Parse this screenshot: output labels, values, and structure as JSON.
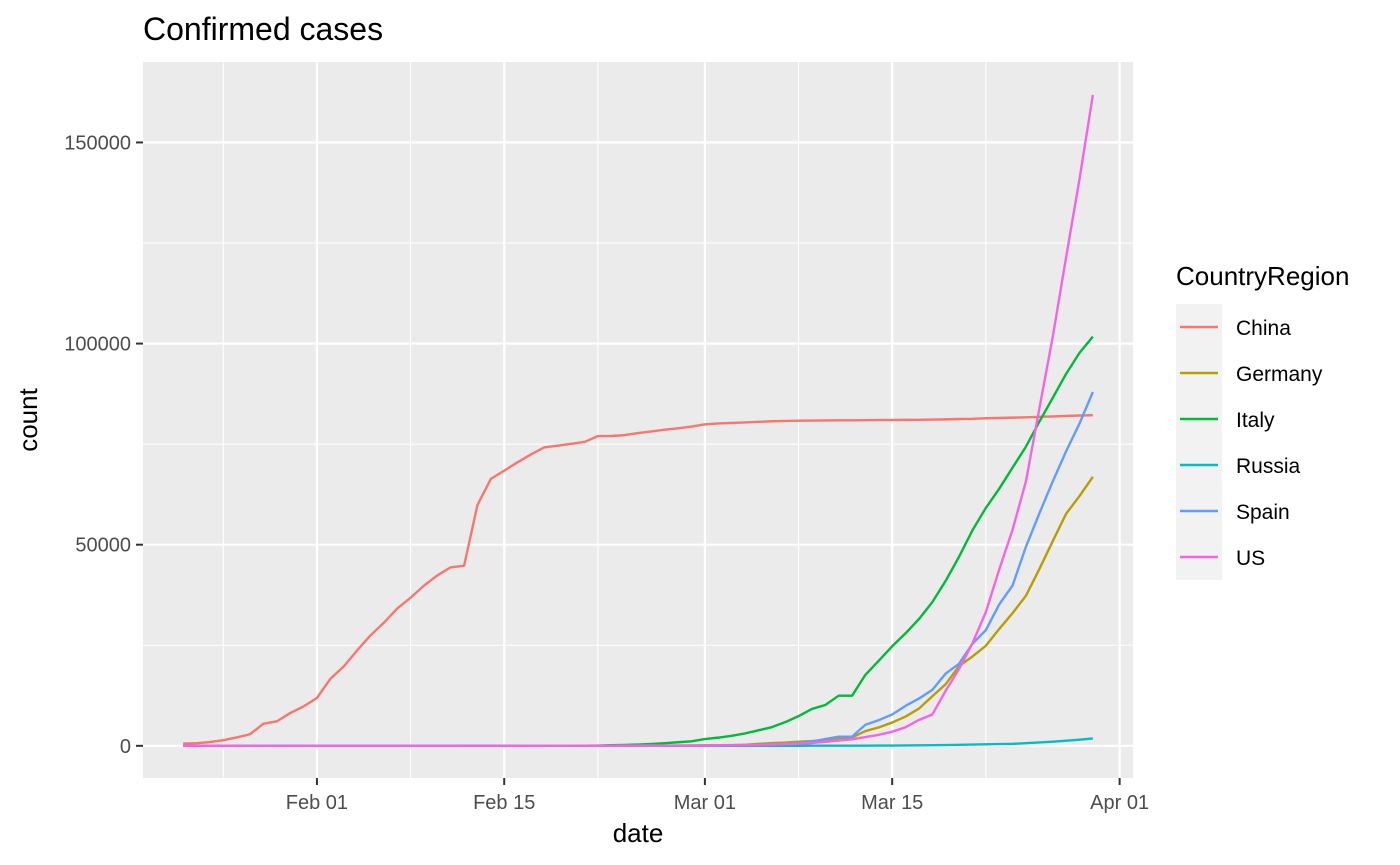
{
  "chart_data": {
    "type": "line",
    "title": "Confirmed cases",
    "xlabel": "date",
    "ylabel": "count",
    "x_axis_type": "date",
    "xlim": [
      "2020-01-19",
      "2020-04-02"
    ],
    "ylim": [
      -8000,
      170000
    ],
    "x_ticks": [
      {
        "date": "2020-02-01",
        "label": "Feb 01"
      },
      {
        "date": "2020-02-15",
        "label": "Feb 15"
      },
      {
        "date": "2020-03-01",
        "label": "Mar 01"
      },
      {
        "date": "2020-03-15",
        "label": "Mar 15"
      },
      {
        "date": "2020-04-01",
        "label": "Apr 01"
      }
    ],
    "x_minor_ticks": [
      "2020-01-25",
      "2020-02-08",
      "2020-02-22",
      "2020-03-08",
      "2020-03-22"
    ],
    "y_ticks": [
      0,
      50000,
      100000,
      150000
    ],
    "y_tick_labels": [
      "0",
      "50000",
      "100000",
      "150000"
    ],
    "y_minor_ticks": [
      25000,
      75000,
      125000
    ],
    "grid": true,
    "panel_background": "#ebebeb",
    "grid_color": "#ffffff",
    "legend": {
      "title": "CountryRegion",
      "position": "right"
    },
    "series": [
      {
        "name": "China",
        "color": "#F8766D",
        "points": [
          [
            "2020-01-22",
            548
          ],
          [
            "2020-01-23",
            643
          ],
          [
            "2020-01-24",
            920
          ],
          [
            "2020-01-25",
            1406
          ],
          [
            "2020-01-26",
            2075
          ],
          [
            "2020-01-27",
            2877
          ],
          [
            "2020-01-28",
            5509
          ],
          [
            "2020-01-29",
            6087
          ],
          [
            "2020-01-30",
            8141
          ],
          [
            "2020-01-31",
            9802
          ],
          [
            "2020-02-01",
            11891
          ],
          [
            "2020-02-02",
            16630
          ],
          [
            "2020-02-03",
            19716
          ],
          [
            "2020-02-04",
            23707
          ],
          [
            "2020-02-05",
            27440
          ],
          [
            "2020-02-06",
            30587
          ],
          [
            "2020-02-07",
            34110
          ],
          [
            "2020-02-08",
            36814
          ],
          [
            "2020-02-09",
            39829
          ],
          [
            "2020-02-10",
            42354
          ],
          [
            "2020-02-11",
            44386
          ],
          [
            "2020-02-12",
            44759
          ],
          [
            "2020-02-13",
            59895
          ],
          [
            "2020-02-14",
            66358
          ],
          [
            "2020-02-15",
            68413
          ],
          [
            "2020-02-16",
            70513
          ],
          [
            "2020-02-17",
            72434
          ],
          [
            "2020-02-18",
            74211
          ],
          [
            "2020-02-19",
            74619
          ],
          [
            "2020-02-20",
            75077
          ],
          [
            "2020-02-21",
            75550
          ],
          [
            "2020-02-22",
            77001
          ],
          [
            "2020-02-23",
            77022
          ],
          [
            "2020-02-24",
            77241
          ],
          [
            "2020-02-25",
            77754
          ],
          [
            "2020-02-26",
            78166
          ],
          [
            "2020-02-27",
            78600
          ],
          [
            "2020-02-28",
            78928
          ],
          [
            "2020-02-29",
            79356
          ],
          [
            "2020-03-01",
            79932
          ],
          [
            "2020-03-02",
            80136
          ],
          [
            "2020-03-03",
            80261
          ],
          [
            "2020-03-04",
            80386
          ],
          [
            "2020-03-05",
            80537
          ],
          [
            "2020-03-06",
            80690
          ],
          [
            "2020-03-07",
            80770
          ],
          [
            "2020-03-08",
            80823
          ],
          [
            "2020-03-09",
            80860
          ],
          [
            "2020-03-10",
            80887
          ],
          [
            "2020-03-11",
            80921
          ],
          [
            "2020-03-12",
            80932
          ],
          [
            "2020-03-13",
            80945
          ],
          [
            "2020-03-14",
            80977
          ],
          [
            "2020-03-15",
            81003
          ],
          [
            "2020-03-16",
            81033
          ],
          [
            "2020-03-17",
            81058
          ],
          [
            "2020-03-18",
            81102
          ],
          [
            "2020-03-19",
            81156
          ],
          [
            "2020-03-20",
            81250
          ],
          [
            "2020-03-21",
            81305
          ],
          [
            "2020-03-22",
            81435
          ],
          [
            "2020-03-23",
            81498
          ],
          [
            "2020-03-24",
            81591
          ],
          [
            "2020-03-25",
            81661
          ],
          [
            "2020-03-26",
            81782
          ],
          [
            "2020-03-27",
            81897
          ],
          [
            "2020-03-28",
            81999
          ],
          [
            "2020-03-29",
            82122
          ],
          [
            "2020-03-30",
            82198
          ]
        ]
      },
      {
        "name": "Germany",
        "color": "#B79F00",
        "points": [
          [
            "2020-01-22",
            0
          ],
          [
            "2020-01-27",
            1
          ],
          [
            "2020-02-01",
            8
          ],
          [
            "2020-02-15",
            16
          ],
          [
            "2020-02-26",
            27
          ],
          [
            "2020-02-28",
            48
          ],
          [
            "2020-03-01",
            130
          ],
          [
            "2020-03-02",
            159
          ],
          [
            "2020-03-03",
            196
          ],
          [
            "2020-03-04",
            262
          ],
          [
            "2020-03-05",
            482
          ],
          [
            "2020-03-06",
            670
          ],
          [
            "2020-03-07",
            799
          ],
          [
            "2020-03-08",
            1040
          ],
          [
            "2020-03-09",
            1176
          ],
          [
            "2020-03-10",
            1457
          ],
          [
            "2020-03-11",
            1908
          ],
          [
            "2020-03-12",
            2078
          ],
          [
            "2020-03-13",
            3675
          ],
          [
            "2020-03-14",
            4585
          ],
          [
            "2020-03-15",
            5795
          ],
          [
            "2020-03-16",
            7272
          ],
          [
            "2020-03-17",
            9257
          ],
          [
            "2020-03-18",
            12327
          ],
          [
            "2020-03-19",
            15320
          ],
          [
            "2020-03-20",
            19848
          ],
          [
            "2020-03-21",
            22213
          ],
          [
            "2020-03-22",
            24873
          ],
          [
            "2020-03-23",
            29056
          ],
          [
            "2020-03-24",
            32986
          ],
          [
            "2020-03-25",
            37323
          ],
          [
            "2020-03-26",
            43938
          ],
          [
            "2020-03-27",
            50871
          ],
          [
            "2020-03-28",
            57695
          ],
          [
            "2020-03-29",
            62095
          ],
          [
            "2020-03-30",
            66885
          ]
        ]
      },
      {
        "name": "Italy",
        "color": "#00BA38",
        "points": [
          [
            "2020-01-22",
            0
          ],
          [
            "2020-01-31",
            2
          ],
          [
            "2020-02-15",
            3
          ],
          [
            "2020-02-21",
            20
          ],
          [
            "2020-02-22",
            62
          ],
          [
            "2020-02-23",
            155
          ],
          [
            "2020-02-24",
            229
          ],
          [
            "2020-02-25",
            322
          ],
          [
            "2020-02-26",
            453
          ],
          [
            "2020-02-27",
            655
          ],
          [
            "2020-02-28",
            888
          ],
          [
            "2020-02-29",
            1128
          ],
          [
            "2020-03-01",
            1694
          ],
          [
            "2020-03-02",
            2036
          ],
          [
            "2020-03-03",
            2502
          ],
          [
            "2020-03-04",
            3089
          ],
          [
            "2020-03-05",
            3858
          ],
          [
            "2020-03-06",
            4636
          ],
          [
            "2020-03-07",
            5883
          ],
          [
            "2020-03-08",
            7375
          ],
          [
            "2020-03-09",
            9172
          ],
          [
            "2020-03-10",
            10149
          ],
          [
            "2020-03-11",
            12462
          ],
          [
            "2020-03-12",
            12462
          ],
          [
            "2020-03-13",
            17660
          ],
          [
            "2020-03-14",
            21157
          ],
          [
            "2020-03-15",
            24747
          ],
          [
            "2020-03-16",
            27980
          ],
          [
            "2020-03-17",
            31506
          ],
          [
            "2020-03-18",
            35713
          ],
          [
            "2020-03-19",
            41035
          ],
          [
            "2020-03-20",
            47021
          ],
          [
            "2020-03-21",
            53578
          ],
          [
            "2020-03-22",
            59138
          ],
          [
            "2020-03-23",
            63927
          ],
          [
            "2020-03-24",
            69176
          ],
          [
            "2020-03-25",
            74386
          ],
          [
            "2020-03-26",
            80589
          ],
          [
            "2020-03-27",
            86498
          ],
          [
            "2020-03-28",
            92472
          ],
          [
            "2020-03-29",
            97689
          ],
          [
            "2020-03-30",
            101739
          ]
        ]
      },
      {
        "name": "Russia",
        "color": "#00BFC4",
        "points": [
          [
            "2020-01-22",
            0
          ],
          [
            "2020-01-31",
            2
          ],
          [
            "2020-03-01",
            2
          ],
          [
            "2020-03-08",
            17
          ],
          [
            "2020-03-12",
            34
          ],
          [
            "2020-03-15",
            63
          ],
          [
            "2020-03-17",
            114
          ],
          [
            "2020-03-19",
            199
          ],
          [
            "2020-03-20",
            253
          ],
          [
            "2020-03-21",
            306
          ],
          [
            "2020-03-22",
            367
          ],
          [
            "2020-03-23",
            438
          ],
          [
            "2020-03-24",
            495
          ],
          [
            "2020-03-25",
            658
          ],
          [
            "2020-03-26",
            840
          ],
          [
            "2020-03-27",
            1036
          ],
          [
            "2020-03-28",
            1264
          ],
          [
            "2020-03-29",
            1534
          ],
          [
            "2020-03-30",
            1836
          ]
        ]
      },
      {
        "name": "Spain",
        "color": "#619CFF",
        "points": [
          [
            "2020-01-22",
            0
          ],
          [
            "2020-02-01",
            1
          ],
          [
            "2020-02-15",
            2
          ],
          [
            "2020-02-25",
            6
          ],
          [
            "2020-02-27",
            15
          ],
          [
            "2020-02-29",
            45
          ],
          [
            "2020-03-01",
            84
          ],
          [
            "2020-03-02",
            120
          ],
          [
            "2020-03-03",
            165
          ],
          [
            "2020-03-04",
            222
          ],
          [
            "2020-03-05",
            259
          ],
          [
            "2020-03-06",
            400
          ],
          [
            "2020-03-07",
            500
          ],
          [
            "2020-03-08",
            673
          ],
          [
            "2020-03-09",
            1073
          ],
          [
            "2020-03-10",
            1695
          ],
          [
            "2020-03-11",
            2277
          ],
          [
            "2020-03-12",
            2277
          ],
          [
            "2020-03-13",
            5232
          ],
          [
            "2020-03-14",
            6391
          ],
          [
            "2020-03-15",
            7798
          ],
          [
            "2020-03-16",
            9942
          ],
          [
            "2020-03-17",
            11748
          ],
          [
            "2020-03-18",
            13910
          ],
          [
            "2020-03-19",
            17963
          ],
          [
            "2020-03-20",
            20410
          ],
          [
            "2020-03-21",
            25374
          ],
          [
            "2020-03-22",
            28768
          ],
          [
            "2020-03-23",
            35136
          ],
          [
            "2020-03-24",
            39885
          ],
          [
            "2020-03-25",
            49515
          ],
          [
            "2020-03-26",
            57786
          ],
          [
            "2020-03-27",
            65719
          ],
          [
            "2020-03-28",
            73235
          ],
          [
            "2020-03-29",
            80110
          ],
          [
            "2020-03-30",
            87956
          ]
        ]
      },
      {
        "name": "US",
        "color": "#F564E3",
        "points": [
          [
            "2020-01-22",
            1
          ],
          [
            "2020-02-01",
            8
          ],
          [
            "2020-02-15",
            13
          ],
          [
            "2020-02-29",
            68
          ],
          [
            "2020-03-01",
            75
          ],
          [
            "2020-03-02",
            100
          ],
          [
            "2020-03-03",
            124
          ],
          [
            "2020-03-04",
            158
          ],
          [
            "2020-03-05",
            221
          ],
          [
            "2020-03-06",
            319
          ],
          [
            "2020-03-07",
            435
          ],
          [
            "2020-03-08",
            541
          ],
          [
            "2020-03-09",
            704
          ],
          [
            "2020-03-10",
            994
          ],
          [
            "2020-03-11",
            1301
          ],
          [
            "2020-03-12",
            1630
          ],
          [
            "2020-03-13",
            2183
          ],
          [
            "2020-03-14",
            2726
          ],
          [
            "2020-03-15",
            3499
          ],
          [
            "2020-03-16",
            4632
          ],
          [
            "2020-03-17",
            6421
          ],
          [
            "2020-03-18",
            7786
          ],
          [
            "2020-03-19",
            13680
          ],
          [
            "2020-03-20",
            19101
          ],
          [
            "2020-03-21",
            25493
          ],
          [
            "2020-03-22",
            33276
          ],
          [
            "2020-03-23",
            43847
          ],
          [
            "2020-03-24",
            53740
          ],
          [
            "2020-03-25",
            65778
          ],
          [
            "2020-03-26",
            83836
          ],
          [
            "2020-03-27",
            101657
          ],
          [
            "2020-03-28",
            121478
          ],
          [
            "2020-03-29",
            140886
          ],
          [
            "2020-03-30",
            161807
          ]
        ]
      }
    ]
  }
}
